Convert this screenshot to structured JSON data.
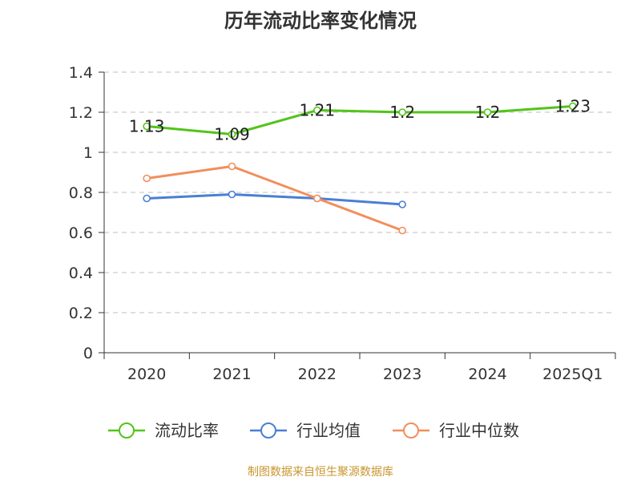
{
  "title": "历年流动比率变化情况",
  "source": "制图数据来自恒生聚源数据库",
  "chart_data": {
    "type": "line",
    "title": "历年流动比率变化情况",
    "categories": [
      "2020",
      "2021",
      "2022",
      "2023",
      "2024",
      "2025Q1"
    ],
    "ylim": [
      0,
      1.4
    ],
    "yticks": [
      0,
      0.2,
      0.4,
      0.6,
      0.8,
      1,
      1.2,
      1.4
    ],
    "ytick_labels": [
      "0",
      "0.2",
      "0.4",
      "0.6",
      "0.8",
      "1",
      "1.2",
      "1.4"
    ],
    "grid": true,
    "legend_position": "bottom",
    "series": [
      {
        "name": "流动比率",
        "color": "#52c41a",
        "values": [
          1.13,
          1.09,
          1.21,
          1.2,
          1.2,
          1.23
        ],
        "labels": [
          "1.13",
          "1.09",
          "1.21",
          "1.2",
          "1.2",
          "1.23"
        ]
      },
      {
        "name": "行业均值",
        "color": "#4a7fd4",
        "values": [
          0.77,
          0.79,
          0.77,
          0.74,
          null,
          null
        ],
        "labels": []
      },
      {
        "name": "行业中位数",
        "color": "#f28e5b",
        "values": [
          0.87,
          0.93,
          0.77,
          0.61,
          null,
          null
        ],
        "labels": []
      }
    ]
  }
}
